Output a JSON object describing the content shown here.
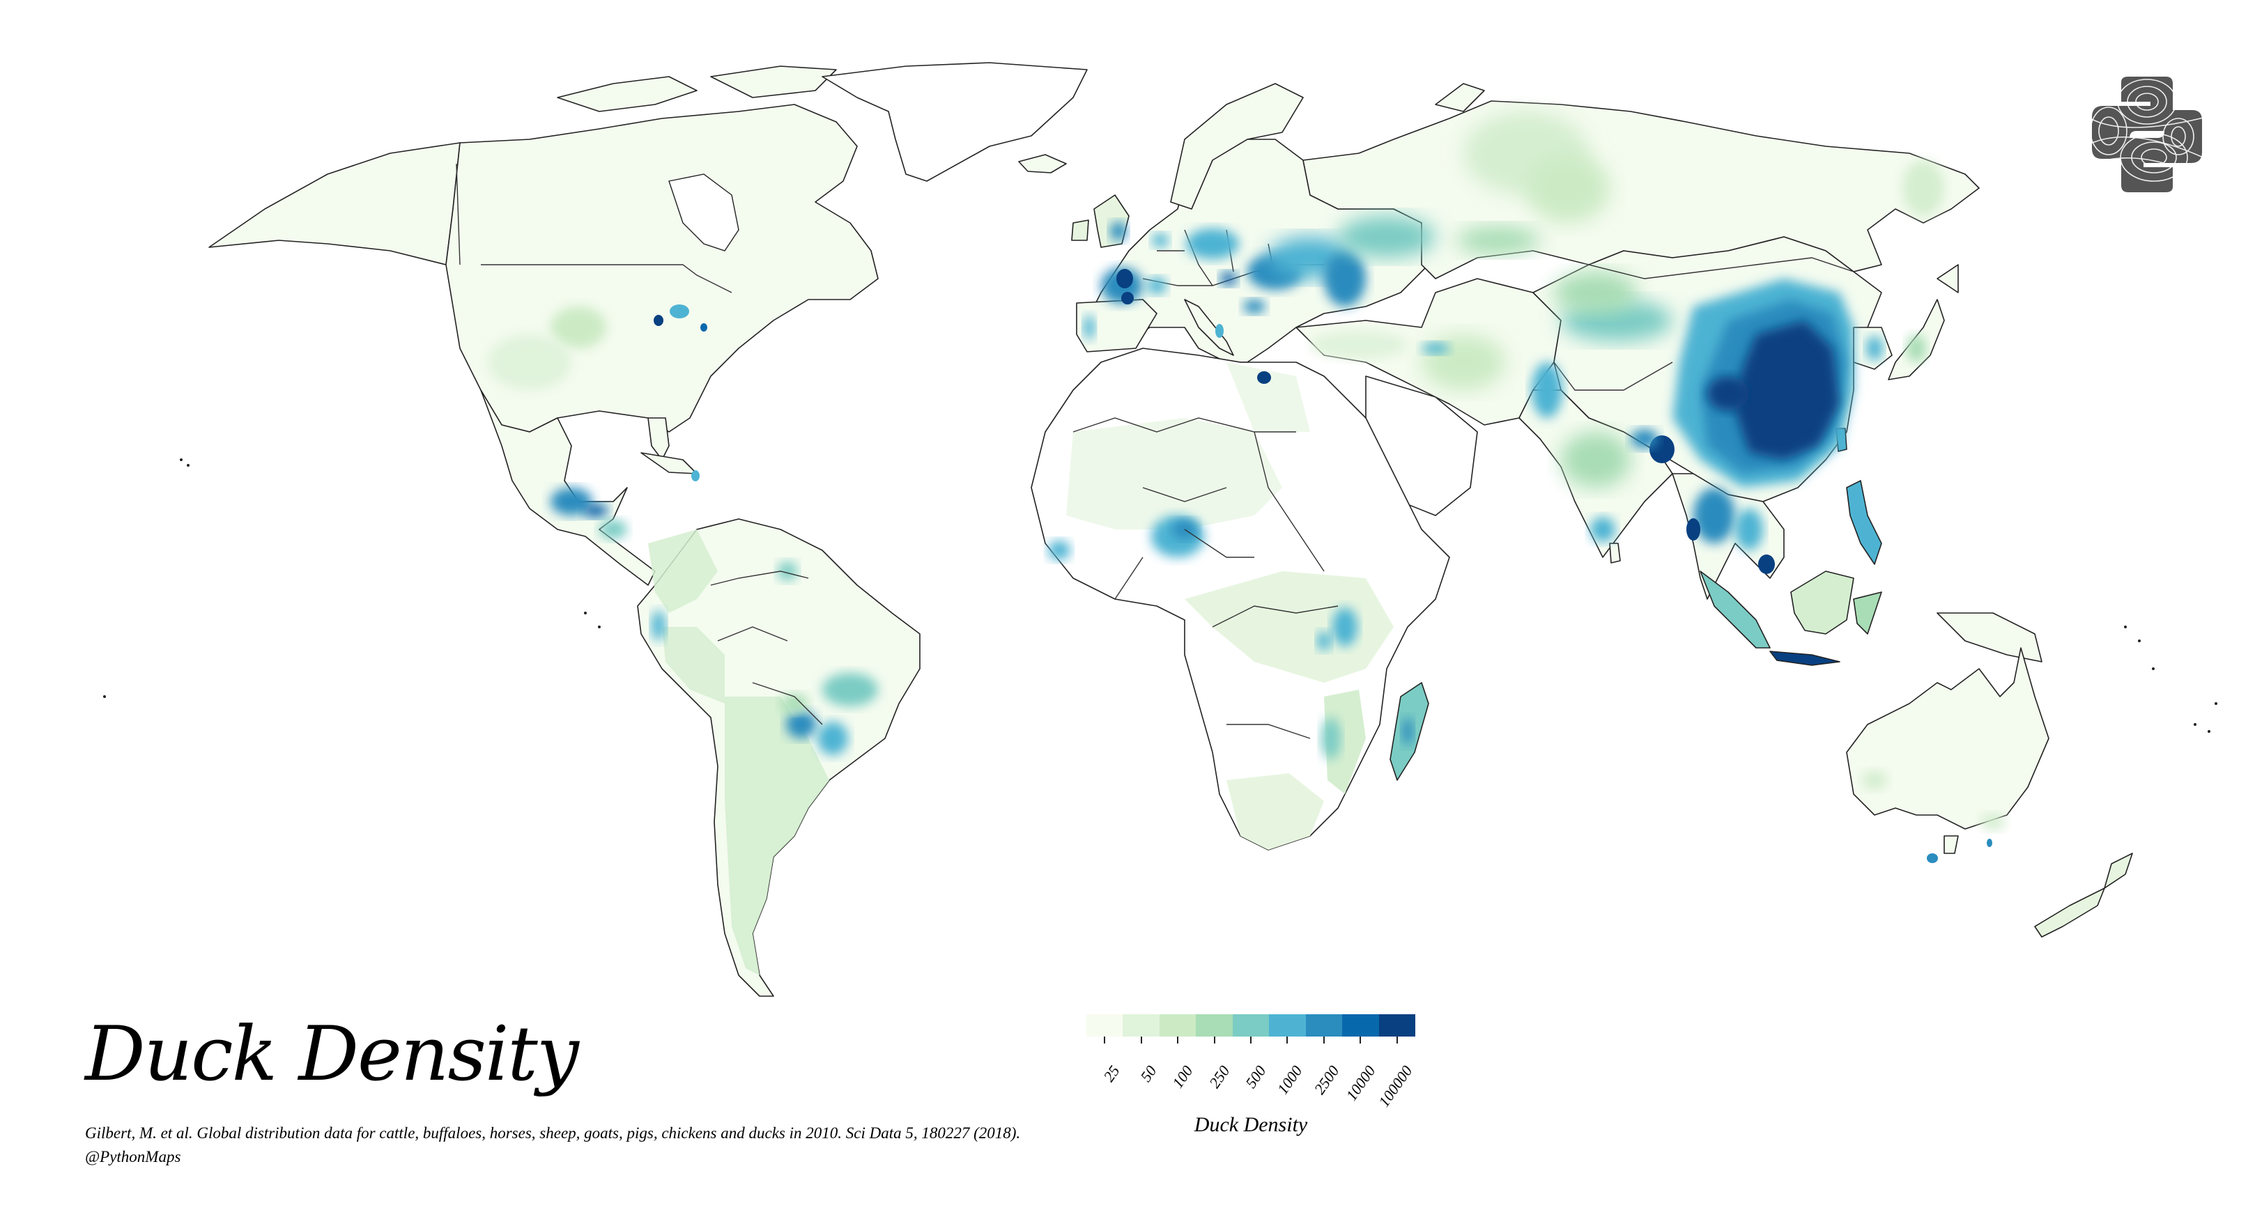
{
  "title": "Duck Density",
  "citation": {
    "line1": "Gilbert, M. et al. Global distribution data for cattle, buffaloes, horses, sheep, goats, pigs, chickens and ducks in 2010. Sci Data 5, 180227 (2018).",
    "line2": "@PythonMaps"
  },
  "logo": {
    "icon": "python-topographic-logo-icon",
    "color": "#555555"
  },
  "colorbar": {
    "label": "Duck Density",
    "ticks": [
      "25",
      "50",
      "100",
      "250",
      "500",
      "1000",
      "2500",
      "10000",
      "100000"
    ],
    "colors": [
      "#f7fcf0",
      "#e0f3db",
      "#ccebc5",
      "#a8ddb5",
      "#7bccc4",
      "#4eb3d3",
      "#2b8cbe",
      "#0868ac",
      "#084081"
    ]
  },
  "map": {
    "background": "#ffffff",
    "no_data_color": "#ffffff",
    "border_color": "#222222",
    "projection": "Robinson"
  },
  "chart_data": {
    "type": "heatmap",
    "title": "Duck Density",
    "legend": {
      "label": "Duck Density",
      "position": "bottom-center",
      "bins": [
        "25",
        "50",
        "100",
        "250",
        "500",
        "1000",
        "2500",
        "10000",
        "100000"
      ],
      "colormap": "GnBu"
    },
    "regions": [
      {
        "name": "Eastern China",
        "level": "100000"
      },
      {
        "name": "Bangladesh",
        "level": "100000"
      },
      {
        "name": "Java (Indonesia)",
        "level": "100000"
      },
      {
        "name": "Mekong Delta (Vietnam)",
        "level": "100000"
      },
      {
        "name": "Nile Delta (Egypt)",
        "level": "100000"
      },
      {
        "name": "Western France",
        "level": "10000"
      },
      {
        "name": "Hungary",
        "level": "10000"
      },
      {
        "name": "Ukraine / Southern Russia",
        "level": "2500"
      },
      {
        "name": "Poland",
        "level": "1000"
      },
      {
        "name": "Nigeria",
        "level": "1000"
      },
      {
        "name": "Madagascar",
        "level": "1000"
      },
      {
        "name": "Southern Mexico / Guatemala",
        "level": "2500"
      },
      {
        "name": "Southern Brazil / Paraguay",
        "level": "1000"
      },
      {
        "name": "India (general)",
        "level": "250"
      },
      {
        "name": "Russia (Siberia)",
        "level": "25-100"
      },
      {
        "name": "Canada",
        "level": "25"
      },
      {
        "name": "United States (general)",
        "level": "25-50"
      },
      {
        "name": "Australia",
        "level": "25"
      },
      {
        "name": "Sahara / Arabia / Southern Africa (interior)",
        "level": "no data"
      }
    ]
  }
}
